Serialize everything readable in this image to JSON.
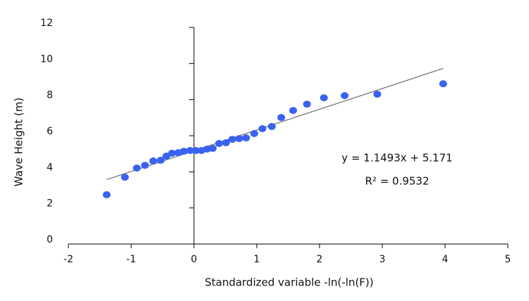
{
  "chart_data": {
    "type": "scatter",
    "x_label": "Standardized variable -ln(-ln(F))",
    "y_label": "Wave Height (m)",
    "xlim": [
      -2,
      5
    ],
    "xticks": [
      -2,
      -1,
      0,
      1,
      2,
      3,
      4,
      5
    ],
    "ylim": [
      0,
      12
    ],
    "yticks": [
      0,
      2,
      4,
      6,
      8,
      10,
      12
    ],
    "color": "#3a62f0",
    "x": [
      -1.39,
      -1.1,
      -0.91,
      -0.78,
      -0.65,
      -0.53,
      -0.44,
      -0.35,
      -0.25,
      -0.16,
      -0.06,
      0.03,
      0.12,
      0.21,
      0.3,
      0.4,
      0.51,
      0.61,
      0.72,
      0.83,
      0.96,
      1.09,
      1.24,
      1.39,
      1.58,
      1.8,
      2.07,
      2.4,
      2.92,
      3.97
    ],
    "values": [
      2.73,
      3.7,
      4.21,
      4.36,
      4.6,
      4.64,
      4.87,
      5.03,
      5.06,
      5.14,
      5.18,
      5.18,
      5.18,
      5.26,
      5.3,
      5.57,
      5.61,
      5.8,
      5.84,
      5.88,
      6.12,
      6.39,
      6.51,
      7.01,
      7.4,
      7.75,
      8.1,
      8.22,
      8.3,
      8.88
    ],
    "trendline": {
      "color": "#777777",
      "x": [
        -1.39,
        3.97
      ],
      "values": [
        3.57,
        9.73
      ]
    },
    "equation": "y = 1.1493x + 5.171",
    "r_squared": "R² = 0.9532"
  }
}
